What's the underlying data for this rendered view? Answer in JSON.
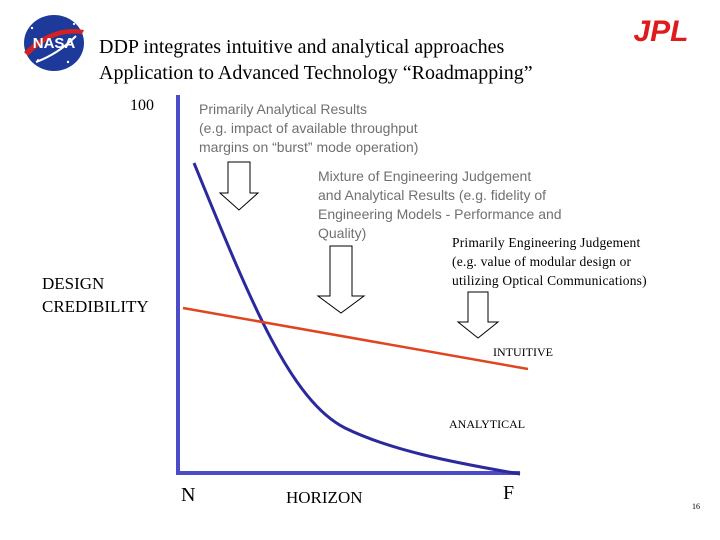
{
  "header": {
    "title_line1": "DDP integrates intuitive and analytical approaches",
    "title_line2": "Application to Advanced Technology “Roadmapping”",
    "left_logo_text": "NASA",
    "right_logo_text": "JPL"
  },
  "axes": {
    "y_top_value": "100",
    "y_label": "DESIGN\nCREDIBILITY",
    "x_left_value": "N",
    "x_label": "HORIZON",
    "x_right_value": "F"
  },
  "annotations": {
    "analytical_results": "Primarily Analytical Results\n(e.g. impact of available throughput\nmargins on “burst” mode operation)",
    "mixture": "Mixture of Engineering Judgement\nand Analytical Results (e.g. fidelity of\nEngineering Models - Performance and\nQuality)",
    "engineering_judgement": "Primarily Engineering Judgement\n(e.g. value of modular design or\nutilizing Optical Communications)"
  },
  "curves": {
    "intuitive_label": "INTUITIVE",
    "analytical_label": "ANALYTICAL",
    "intuitive_color": "#e0451f",
    "analytical_color": "#2b2a9c",
    "axis_color": "#4c4bc8"
  },
  "footer": {
    "page_number": "16"
  }
}
